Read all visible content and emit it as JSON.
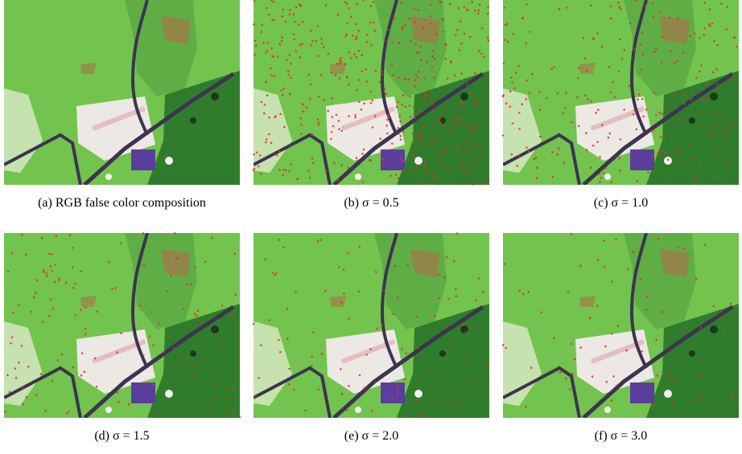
{
  "figure": {
    "panels": [
      {
        "caption": "(a) RGB false color composition"
      },
      {
        "caption": "(b) σ = 0.5"
      },
      {
        "caption": "(c) σ = 1.0"
      },
      {
        "caption": "(d) σ = 1.5"
      },
      {
        "caption": "(e) σ = 2.0"
      },
      {
        "caption": "(f) σ = 3.0"
      }
    ]
  }
}
